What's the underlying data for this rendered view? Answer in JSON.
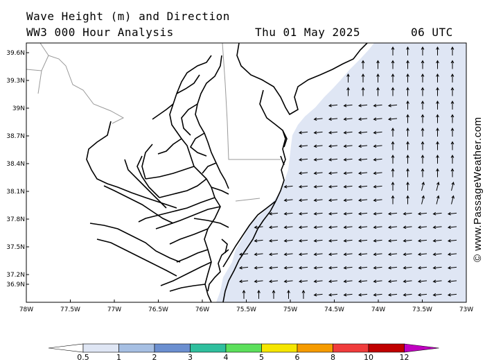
{
  "header": {
    "title": "Wave Height (m) and Direction",
    "model": "WW3 000 Hour Analysis",
    "date": "Thu 01 May 2025",
    "time": "06 UTC"
  },
  "axes": {
    "lat_ticks": [
      "39.6N",
      "39.3N",
      "39N",
      "38.7N",
      "38.4N",
      "38.1N",
      "37.8N",
      "37.5N",
      "37.2N",
      "36.9N"
    ],
    "lon_ticks": [
      "78W",
      "77.5W",
      "77W",
      "76.5W",
      "76W",
      "75.5W",
      "75W",
      "74.5W",
      "74W",
      "73.5W",
      "73W"
    ],
    "lon_range": [
      -78,
      -73
    ],
    "lat_range": [
      36.75,
      39.7
    ]
  },
  "colorbar": {
    "labels": [
      "0.5",
      "1",
      "2",
      "3",
      "4",
      "5",
      "6",
      "8",
      "10",
      "12"
    ],
    "colors": [
      "#dfe6f4",
      "#a6bfe3",
      "#6b8fd0",
      "#2fbf9e",
      "#5ce05c",
      "#f5e600",
      "#f59b00",
      "#f03c3c",
      "#c00000",
      "#c000c0"
    ]
  },
  "wave_field": {
    "fill_color": "#dfe6f4",
    "directions_deg": {
      "offshore_south": "west",
      "offshore_north": "north",
      "nearshore_south": "north"
    }
  },
  "copyright": "© www.PassageWeather.com"
}
